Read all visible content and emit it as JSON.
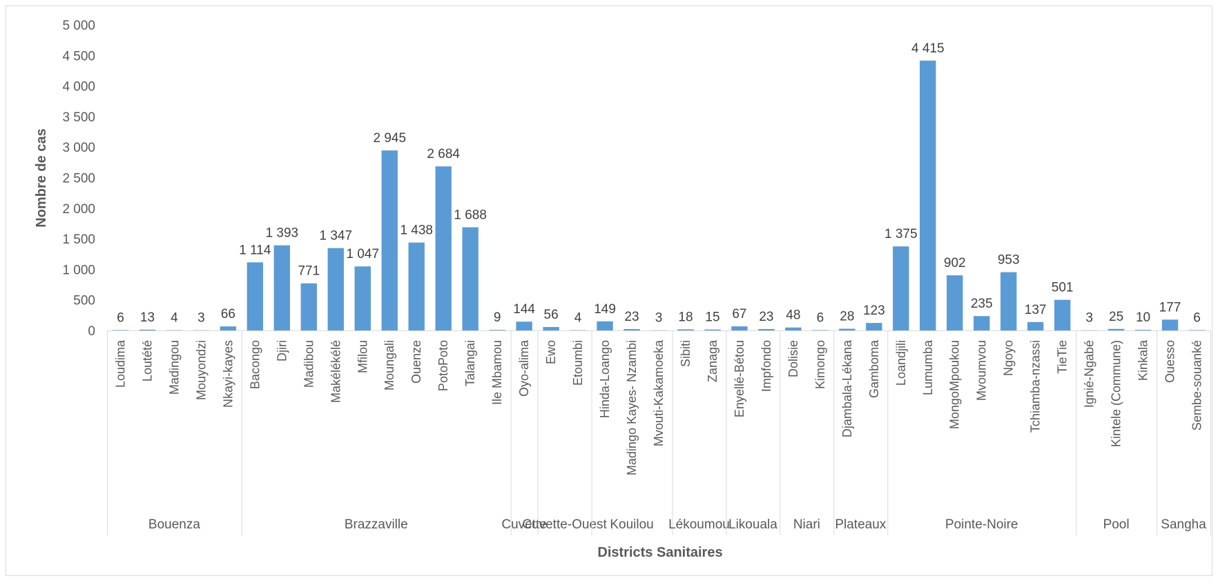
{
  "chart_data": {
    "type": "bar",
    "title": "",
    "xlabel": "Districts Sanitaires",
    "ylabel": "Nombre de cas",
    "ylim": [
      0,
      5000
    ],
    "yticks": [
      0,
      500,
      1000,
      1500,
      2000,
      2500,
      3000,
      3500,
      4000,
      4500,
      5000
    ],
    "ytick_labels": [
      "0",
      "500",
      "1 000",
      "1 500",
      "2 000",
      "2 500",
      "3 000",
      "3 500",
      "4 000",
      "4 500",
      "5 000"
    ],
    "grid": false,
    "legend": "none",
    "bar_color": "#5b9bd5",
    "categories": [
      "Loudima",
      "Loutété",
      "Madingou",
      "Mouyondzi",
      "Nkayi-kayes",
      "Bacongo",
      "Djiri",
      "Madibou",
      "Makélékélé",
      "Mfilou",
      "Moungali",
      "Ouenze",
      "PotoPoto",
      "Talangai",
      "Ile Mbamou",
      "Oyo-alima",
      "Ewo",
      "Etoumbi",
      "Hinda-Loango",
      "Madingo Kayes- Nzambi",
      "Mvouti-Kakamoeka",
      "Sibiti",
      "Zanaga",
      "Enyellé-Bétou",
      "Impfondo",
      "Dolisie",
      "Kimongo",
      "Djambala-Lékana",
      "Gamboma",
      "Loandjili",
      "Lumumba",
      "MongoMpoukou",
      "Mvoumvou",
      "Ngoyo",
      "Tchiamba-nzassi",
      "TieTie",
      "Ignié-Ngabé",
      "Kintele (Commune)",
      "Kinkala",
      "Ouesso",
      "Sembe-souanké"
    ],
    "values": [
      6,
      13,
      4,
      3,
      66,
      1114,
      1393,
      771,
      1347,
      1047,
      2945,
      1438,
      2684,
      1688,
      9,
      144,
      56,
      4,
      149,
      23,
      3,
      18,
      15,
      67,
      23,
      48,
      6,
      28,
      123,
      1375,
      4415,
      902,
      235,
      953,
      137,
      501,
      3,
      25,
      10,
      177,
      6
    ],
    "value_labels": [
      "6",
      "13",
      "4",
      "3",
      "66",
      "1 114",
      "1 393",
      "771",
      "1 347",
      "1 047",
      "2 945",
      "1 438",
      "2 684",
      "1 688",
      "9",
      "144",
      "56",
      "4",
      "149",
      "23",
      "3",
      "18",
      "15",
      "67",
      "23",
      "48",
      "6",
      "28",
      "123",
      "1 375",
      "4 415",
      "902",
      "235",
      "953",
      "137",
      "501",
      "3",
      "25",
      "10",
      "177",
      "6"
    ],
    "groups": [
      {
        "name": "Bouenza",
        "count": 5
      },
      {
        "name": "Brazzaville",
        "count": 10
      },
      {
        "name": "Cuvette",
        "count": 1
      },
      {
        "name": "Cuvette-Ouest",
        "count": 2
      },
      {
        "name": "Kouilou",
        "count": 3
      },
      {
        "name": "Lékoumou",
        "count": 2
      },
      {
        "name": "Likouala",
        "count": 2
      },
      {
        "name": "Niari",
        "count": 2
      },
      {
        "name": "Plateaux",
        "count": 2
      },
      {
        "name": "Pointe-Noire",
        "count": 7
      },
      {
        "name": "Pool",
        "count": 3
      },
      {
        "name": "Sangha",
        "count": 2
      }
    ]
  }
}
